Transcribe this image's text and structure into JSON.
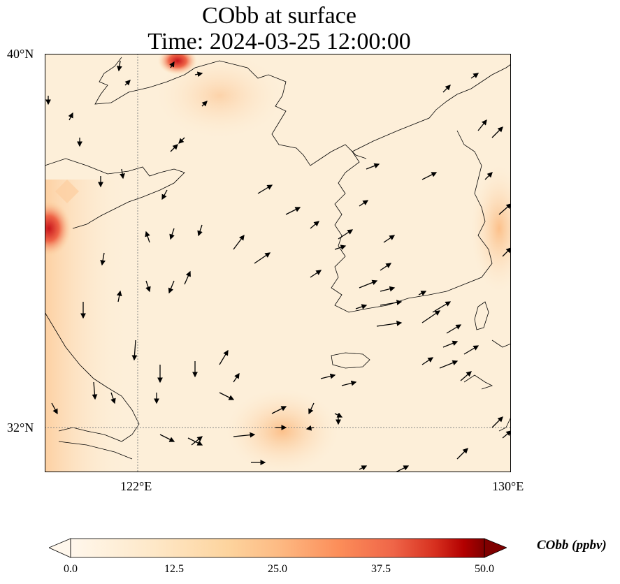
{
  "title": {
    "line1": "CObb at surface",
    "line2": "Time: 2024-03-25 12:00:00"
  },
  "map": {
    "lat_range": [
      31.2,
      40.0
    ],
    "lon_range": [
      120.6,
      130.0
    ],
    "lat_ticks": [
      "40°N",
      "32°N"
    ],
    "lon_ticks": [
      "122°E",
      "130°E"
    ],
    "gridlines": {
      "lat": 32.0,
      "lon": 122.0
    }
  },
  "colorbar": {
    "label": "CObb (ppbv)",
    "min": 0.0,
    "max": 50.0,
    "ticks": [
      "0.0",
      "12.5",
      "25.0",
      "37.5",
      "50.0"
    ],
    "colormap": "OrRd",
    "extend": "both"
  },
  "colors": {
    "background": "#fdefd9",
    "coastline": "#000000",
    "gridline": "#888888",
    "cmap_low": "#fff7ec",
    "cmap_mid": "#fdbb84",
    "cmap_high": "#7f0000"
  }
}
